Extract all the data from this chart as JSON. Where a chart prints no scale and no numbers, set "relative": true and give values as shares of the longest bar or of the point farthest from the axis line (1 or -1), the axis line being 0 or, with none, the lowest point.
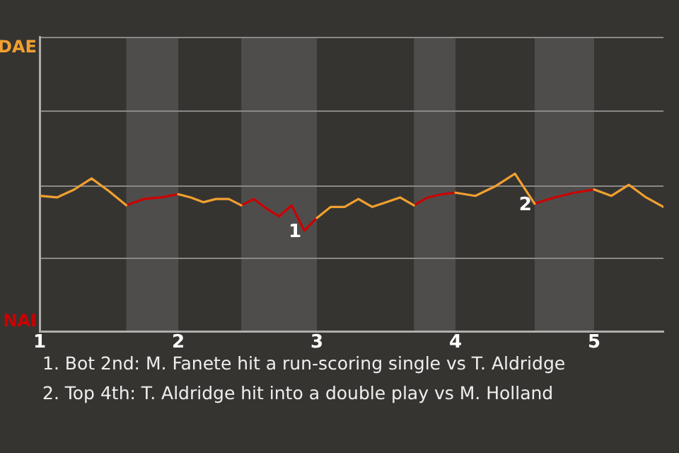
{
  "chart_data": {
    "type": "line",
    "x": [
      1,
      1.125,
      1.25,
      1.375,
      1.5,
      1.625,
      1.75,
      1.875,
      2,
      2.091,
      2.182,
      2.273,
      2.364,
      2.455,
      2.545,
      2.636,
      2.727,
      2.818,
      2.909,
      3,
      3.1,
      3.2,
      3.3,
      3.4,
      3.5,
      3.6,
      3.7,
      3.8,
      3.9,
      4,
      4.143,
      4.286,
      4.429,
      4.571,
      4.714,
      4.857,
      5,
      5.125,
      5.25,
      5.375,
      5.5
    ],
    "series": [
      {
        "color": "#f0a030",
        "values": [
          0.86,
          0.85,
          0.9,
          0.97,
          0.89,
          0.8,
          null,
          null,
          0.87,
          0.85,
          0.82,
          0.84,
          0.84,
          0.8,
          null,
          null,
          null,
          null,
          null,
          0.72,
          0.79,
          0.79,
          0.84,
          0.79,
          0.82,
          0.85,
          0.8,
          null,
          null,
          0.88,
          0.86,
          0.92,
          1,
          0.81,
          null,
          null,
          0.9,
          0.86,
          0.93,
          0.85,
          0.79
        ]
      },
      {
        "color": "#cc0000",
        "values": [
          null,
          null,
          null,
          null,
          null,
          0.8,
          0.84,
          0.85,
          0.87,
          null,
          null,
          null,
          null,
          0.8,
          0.84,
          0.78,
          0.73,
          0.8,
          0.64,
          0.72,
          null,
          null,
          null,
          null,
          null,
          null,
          0.8,
          0.85,
          0.87,
          0.88,
          null,
          null,
          null,
          0.81,
          0.85,
          0.88,
          0.9,
          null,
          null,
          null,
          null
        ]
      }
    ],
    "relative": true,
    "xlim": [
      1,
      5.5
    ],
    "xticks": [
      1,
      2,
      3,
      4,
      5
    ],
    "tick_labels": "x",
    "ref_lines": [
      {
        "axis": "y",
        "value": 0.47,
        "color": "#8a8886"
      },
      {
        "axis": "y",
        "value": 0.93,
        "color": "#8a8886"
      },
      {
        "axis": "y",
        "value": 1.4,
        "color": "#8a8886"
      }
    ],
    "marker": "none",
    "line_style": "solid",
    "bands": [
      {
        "axis": "x",
        "from": 1.625,
        "to": 2,
        "color": "#4f4d4b"
      },
      {
        "axis": "x",
        "from": 2.455,
        "to": 3,
        "color": "#4f4d4b"
      },
      {
        "axis": "x",
        "from": 3.7,
        "to": 4,
        "color": "#4f4d4b"
      },
      {
        "axis": "x",
        "from": 4.571,
        "to": 5,
        "color": "#4f4d4b"
      }
    ],
    "annotations": [
      {
        "text": "1",
        "x": 2.909,
        "y": 0.64
      },
      {
        "text": "2",
        "x": 4.571,
        "y": 0.81
      },
      "DAE",
      "NAI",
      "1. Bot 2nd: M. Fanete hit a run-scoring single vs T. Aldridge",
      "2. Top 4th: T. Aldridge hit into a double play vs M. Holland"
    ]
  }
}
